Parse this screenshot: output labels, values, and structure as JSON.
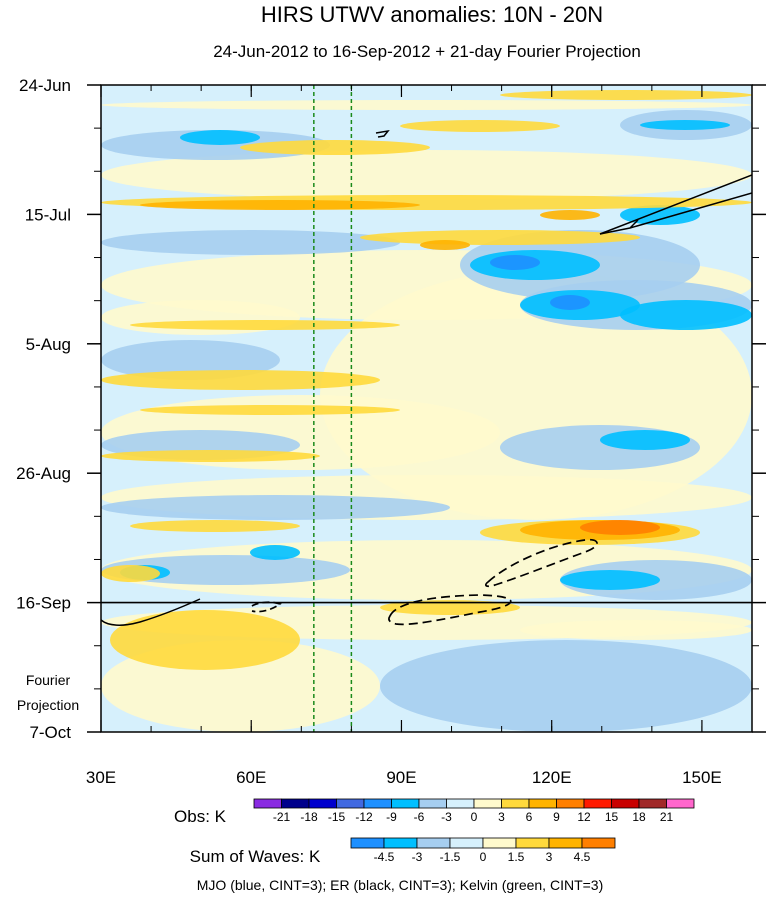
{
  "chart_data": {
    "type": "heatmap",
    "title": "HIRS UTWV anomalies: 10N - 20N",
    "subtitle": "24-Jun-2012 to 16-Sep-2012 + 21-day Fourier Projection",
    "x_range": [
      30,
      160
    ],
    "x_ticks": [
      {
        "value": 30,
        "label": "30E"
      },
      {
        "value": 60,
        "label": "60E"
      },
      {
        "value": 90,
        "label": "90E"
      },
      {
        "value": 120,
        "label": "120E"
      },
      {
        "value": 150,
        "label": "150E"
      }
    ],
    "y_range_days": [
      0,
      105
    ],
    "y_ticks": [
      {
        "day": 0,
        "label": "24-Jun"
      },
      {
        "day": 21,
        "label": "15-Jul"
      },
      {
        "day": 42,
        "label": "5-Aug"
      },
      {
        "day": 63,
        "label": "26-Aug"
      },
      {
        "day": 84,
        "label": "16-Sep"
      },
      {
        "day": 105,
        "label": "7-Oct"
      }
    ],
    "projection_label": [
      "Fourier",
      "Projection"
    ],
    "projection_start_day": 84,
    "kelvin_lines_lon": [
      72.5,
      80
    ],
    "obs_colorbar": {
      "label": "Obs: K",
      "levels": [
        "-21",
        "-18",
        "-15",
        "-12",
        "-9",
        "-6",
        "-3",
        "0",
        "3",
        "6",
        "9",
        "12",
        "15",
        "18",
        "21"
      ],
      "colors": [
        "#8a2be2",
        "#00008b",
        "#0000cd",
        "#4169e1",
        "#1e90ff",
        "#00bfff",
        "#a6cef0",
        "#d6f0fc",
        "#fffacd",
        "#ffd93c",
        "#ffb300",
        "#ff7f00",
        "#ff1a00",
        "#c80000",
        "#a02828",
        "#ff66cc"
      ]
    },
    "waves_colorbar": {
      "label": "Sum of Waves: K",
      "levels": [
        "-4.5",
        "-3",
        "-1.5",
        "0",
        "1.5",
        "3",
        "4.5"
      ],
      "colors": [
        "#1e90ff",
        "#00bfff",
        "#a6cef0",
        "#d6f0fc",
        "#fffacd",
        "#ffd93c",
        "#ffb300",
        "#ff7f00"
      ]
    },
    "footer": "MJO (blue, CINT=3); ER (black, CINT=3); Kelvin (green, CINT=3)"
  }
}
